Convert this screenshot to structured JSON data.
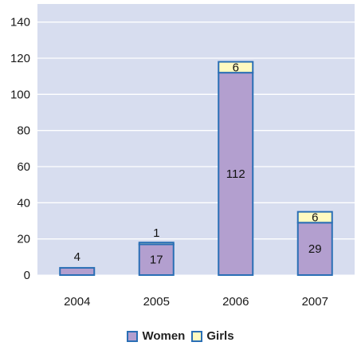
{
  "chart_data": {
    "type": "bar",
    "stacked": true,
    "categories": [
      "2004",
      "2005",
      "2006",
      "2007"
    ],
    "series": [
      {
        "name": "Women",
        "values": [
          4,
          17,
          112,
          29
        ],
        "color": "#b39fcf"
      },
      {
        "name": "Girls",
        "values": [
          0,
          1,
          6,
          6
        ],
        "color": "#fffac0"
      }
    ],
    "data_labels": {
      "Women": [
        "4",
        "17",
        "112",
        "29"
      ],
      "Girls": [
        "",
        "1",
        "6",
        "6"
      ]
    },
    "yticks": [
      "0",
      "20",
      "40",
      "60",
      "80",
      "100",
      "120",
      "140"
    ],
    "ylim": [
      0,
      150
    ],
    "grid": true,
    "legend_position": "bottom",
    "title": "",
    "xlabel": "",
    "ylabel": "",
    "colors": {
      "plot_background": "#d7ddef",
      "grid": "#ffffff",
      "bar_border": "#2a6fb5"
    }
  },
  "legend": {
    "women_label": "Women",
    "girls_label": "Girls"
  }
}
